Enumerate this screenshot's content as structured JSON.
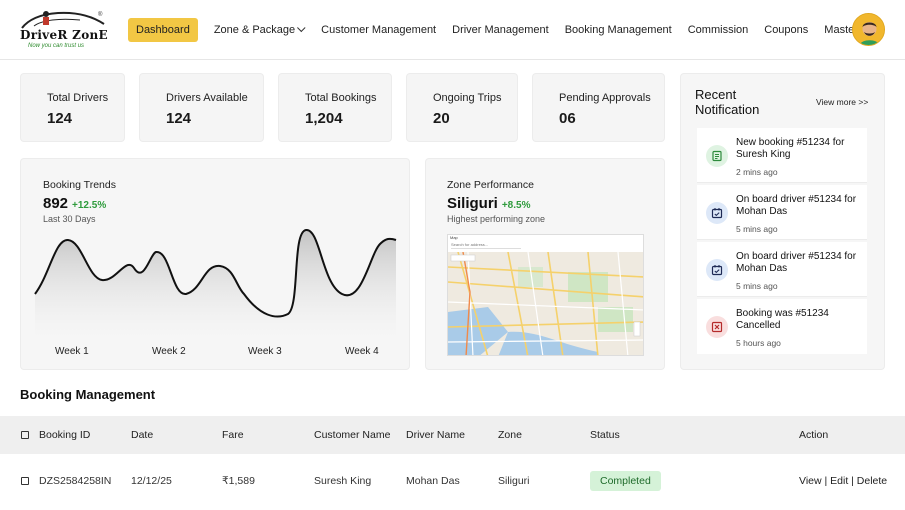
{
  "logo": {
    "brand": "DriveR ZonE",
    "tagline": "Now you can trust us",
    "reg_mark": "®"
  },
  "nav": {
    "dashboard": "Dashboard",
    "zone_package": "Zone & Package",
    "customer_management": "Customer Management",
    "driver_management": "Driver Management",
    "booking_management": "Booking Management",
    "commission": "Commission",
    "coupons": "Coupons",
    "master": "Master"
  },
  "stats": [
    {
      "label": "Total Drivers",
      "value": "124"
    },
    {
      "label": "Drivers Available",
      "value": "124"
    },
    {
      "label": "Total Bookings",
      "value": "1,204"
    },
    {
      "label": "Ongoing Trips",
      "value": "20"
    },
    {
      "label": "Pending Approvals",
      "value": "06"
    }
  ],
  "booking_trends": {
    "title": "Booking Trends",
    "value": "892",
    "change": "+12.5%",
    "period": "Last 30 Days",
    "weeks": [
      "Week 1",
      "Week 2",
      "Week 3",
      "Week 4"
    ]
  },
  "zone_performance": {
    "title": "Zone Performance",
    "zone": "Siliguri",
    "change": "+8.5%",
    "subtitle": "Highest performing zone",
    "map_label": "Map",
    "map_search_placeholder": "Search for address..."
  },
  "notifications": {
    "title": "Recent Notification",
    "view_more": "View more >>",
    "items": [
      {
        "text": "New booking #51234 for Suresh King",
        "time": "2 mins ago",
        "icon": "booking-icon",
        "color": "#dff3e2"
      },
      {
        "text": "On board driver #51234 for Mohan Das",
        "time": "5 mins ago",
        "icon": "calendar-check-icon",
        "color": "#dde8f8"
      },
      {
        "text": "On board driver #51234 for Mohan Das",
        "time": "5 mins ago",
        "icon": "calendar-check-icon",
        "color": "#dde8f8"
      },
      {
        "text": "Booking was #51234 Cancelled",
        "time": "5 hours ago",
        "icon": "cancel-booking-icon",
        "color": "#f9dede"
      }
    ]
  },
  "booking_management": {
    "title": "Booking Management",
    "columns": [
      "Booking ID",
      "Date",
      "Fare",
      "Customer Name",
      "Driver Name",
      "Zone",
      "Status",
      "Action"
    ],
    "rows": [
      {
        "booking_id": "DZS2584258IN",
        "date": "12/12/25",
        "fare": "₹1,589",
        "customer": "Suresh King",
        "driver": "Mohan Das",
        "zone": "Siliguri",
        "status": "Completed",
        "actions": [
          "View",
          "Edit",
          "Delete"
        ]
      }
    ]
  },
  "colors": {
    "accent": "#f2c744",
    "positive": "#2e9b3c",
    "status_completed_bg": "#d5f2d8"
  }
}
